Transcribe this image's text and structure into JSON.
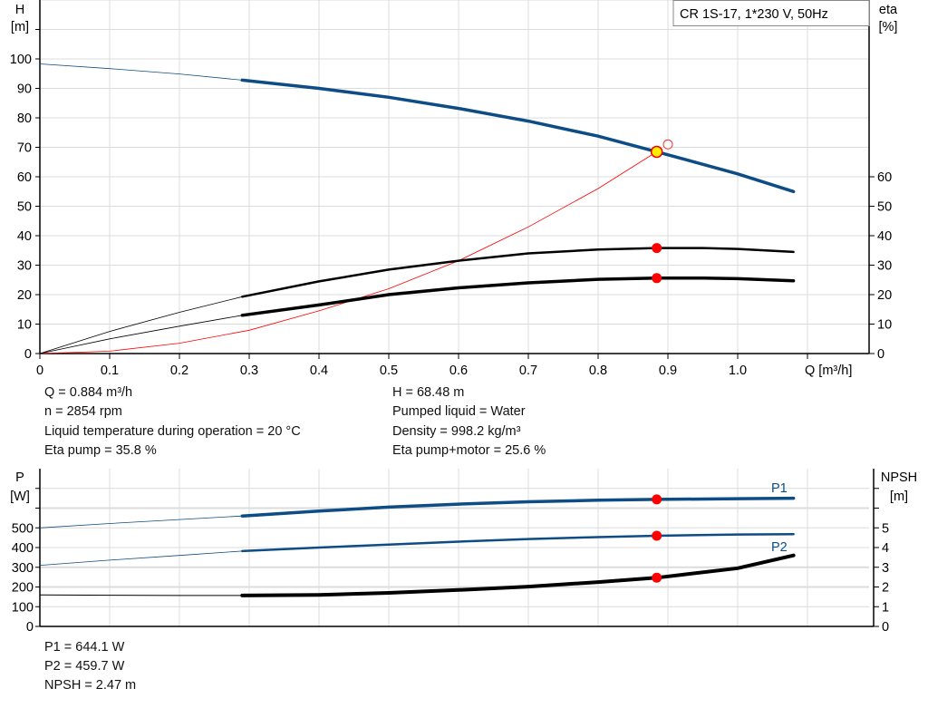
{
  "chart_data": [
    {
      "type": "line",
      "title": "CR 1S-17, 1*230 V, 50Hz",
      "xlabel": "Q [m³/h]",
      "ylabel": "H",
      "yunit": "[m]",
      "y2label": "eta",
      "y2unit": "[%]",
      "xlim": [
        0,
        1.1
      ],
      "ylim": [
        0,
        120
      ],
      "x_ticks": [
        "0",
        "0.1",
        "0.2",
        "0.3",
        "0.4",
        "0.5",
        "0.6",
        "0.7",
        "0.8",
        "0.9",
        "1.0"
      ],
      "y_ticks": [
        "0",
        "10",
        "20",
        "30",
        "40",
        "50",
        "60",
        "70",
        "80",
        "90",
        "100"
      ],
      "y2_ticks": [
        "0",
        "10",
        "20",
        "30",
        "40",
        "50",
        "60"
      ],
      "grid": true,
      "series": [
        {
          "key": "H",
          "axis": "H",
          "color": "#0e4c85",
          "x": [
            0,
            0.1,
            0.2,
            0.29,
            0.4,
            0.5,
            0.6,
            0.7,
            0.8,
            0.884,
            1.0,
            1.08
          ],
          "y": [
            98.3,
            96.7,
            94.9,
            92.8,
            90,
            87,
            83.2,
            78.9,
            73.8,
            68.48,
            61,
            55
          ]
        },
        {
          "key": "eta_pump",
          "axis": "eta",
          "color": "#000000",
          "x": [
            0,
            0.1,
            0.2,
            0.29,
            0.4,
            0.5,
            0.6,
            0.7,
            0.8,
            0.884,
            0.95,
            1.0,
            1.08
          ],
          "y": [
            0,
            7.5,
            14,
            19.3,
            24.5,
            28.5,
            31.5,
            34,
            35.3,
            35.8,
            35.8,
            35.5,
            34.5
          ]
        },
        {
          "key": "eta_pump_motor",
          "axis": "eta",
          "color": "#000000",
          "x": [
            0,
            0.1,
            0.2,
            0.29,
            0.4,
            0.5,
            0.6,
            0.7,
            0.8,
            0.884,
            0.95,
            1.0,
            1.08
          ],
          "y": [
            0,
            5,
            9.3,
            13,
            16.5,
            20,
            22.3,
            24,
            25.2,
            25.6,
            25.6,
            25.4,
            24.7
          ]
        },
        {
          "key": "system",
          "axis": "H",
          "color": "#ff0000",
          "x": [
            0,
            0.1,
            0.2,
            0.3,
            0.4,
            0.5,
            0.6,
            0.7,
            0.8,
            0.884
          ],
          "y": [
            0,
            0.8,
            3.5,
            7.9,
            14.5,
            22,
            31.5,
            43,
            56,
            68.48
          ]
        }
      ],
      "operating_point": {
        "Q": 0.884,
        "H": 68.48,
        "eta_pump": 35.8,
        "eta_pump_motor": 25.6
      },
      "duty_point": {
        "Q": 0.9,
        "H": 71
      }
    },
    {
      "type": "line",
      "xlim": [
        0,
        1.1
      ],
      "ylabel": "P",
      "yunit": "[W]",
      "y2label": "NPSH",
      "y2unit": "[m]",
      "ylim": [
        0,
        800
      ],
      "y_ticks": [
        "0",
        "100",
        "200",
        "300",
        "400",
        "500"
      ],
      "y2_ticks": [
        "0",
        "1",
        "2",
        "3",
        "4",
        "5"
      ],
      "grid": true,
      "series": [
        {
          "key": "P1",
          "name": "P1",
          "axis": "P",
          "color": "#0e4c85",
          "x": [
            0,
            0.1,
            0.2,
            0.29,
            0.4,
            0.5,
            0.6,
            0.7,
            0.8,
            0.884,
            1.0,
            1.08
          ],
          "y": [
            500,
            522,
            542,
            560,
            585,
            605,
            620,
            632,
            640,
            644.1,
            648,
            650
          ]
        },
        {
          "key": "P2",
          "name": "P2",
          "axis": "P",
          "color": "#0e4c85",
          "x": [
            0,
            0.1,
            0.2,
            0.29,
            0.4,
            0.5,
            0.6,
            0.7,
            0.8,
            0.884,
            1.0,
            1.08
          ],
          "y": [
            310,
            336,
            360,
            382,
            400,
            415,
            430,
            443,
            453,
            459.7,
            466,
            468
          ]
        },
        {
          "key": "NPSH",
          "axis": "NPSH",
          "color": "#000000",
          "x": [
            0,
            0.1,
            0.2,
            0.29,
            0.4,
            0.5,
            0.6,
            0.7,
            0.8,
            0.884,
            1.0,
            1.08
          ],
          "y": [
            1.6,
            1.58,
            1.57,
            1.57,
            1.6,
            1.7,
            1.85,
            2.02,
            2.25,
            2.47,
            2.95,
            3.6
          ]
        }
      ],
      "operating_point": {
        "Q": 0.884,
        "P1": 644.1,
        "P2": 459.7,
        "NPSH": 2.47
      }
    }
  ],
  "info": {
    "left": [
      "Q = 0.884 m³/h",
      "n = 2854 rpm",
      "Liquid temperature during operation = 20 °C",
      "Eta pump = 35.8 %"
    ],
    "right": [
      "H = 68.48 m",
      "Pumped liquid = Water",
      "Density = 998.2 kg/m³",
      "Eta pump+motor = 25.6 %"
    ],
    "bottom": [
      "P1 = 644.1 W",
      "P2 = 459.7 W",
      "NPSH = 2.47 m"
    ]
  }
}
